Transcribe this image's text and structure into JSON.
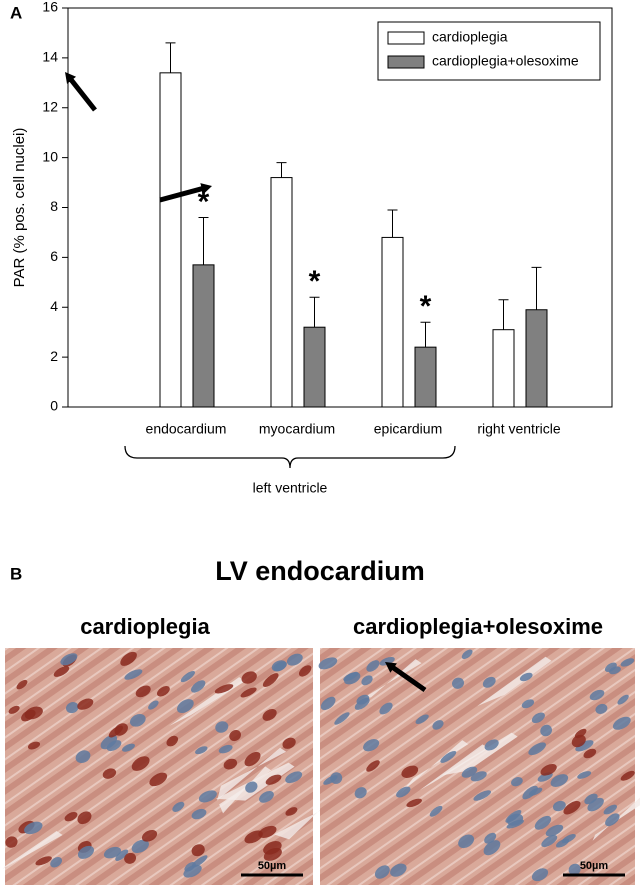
{
  "panel_labels": [
    "A",
    "B"
  ],
  "chart_data": {
    "type": "bar",
    "y_label": "PAR (% pos. cell nuclei)",
    "categories": [
      "endocardium",
      "myocardium",
      "epicardium",
      "right ventricle"
    ],
    "series": [
      {
        "name": "cardioplegia",
        "color": "#ffffff",
        "values": [
          13.4,
          9.2,
          6.8,
          3.1
        ],
        "errors": [
          1.2,
          0.6,
          1.1,
          1.2
        ]
      },
      {
        "name": "cardioplegia+olesoxime",
        "color": "#808080",
        "values": [
          5.7,
          3.2,
          2.4,
          3.9
        ],
        "errors": [
          1.9,
          1.2,
          1.0,
          1.7
        ],
        "markers": [
          "*",
          "*",
          "*",
          null
        ]
      }
    ],
    "bracket_label": "left ventricle",
    "ylim": [
      0,
      16
    ],
    "yticks": [
      0,
      2,
      4,
      6,
      8,
      10,
      12,
      14,
      16
    ],
    "legend": "upper right"
  },
  "panel_b": {
    "title": "LV endocardium",
    "images": [
      {
        "label": "cardioplegia",
        "scale_bar": "50µm"
      },
      {
        "label": "cardioplegia+olesoxime",
        "scale_bar": "50µm"
      }
    ]
  }
}
